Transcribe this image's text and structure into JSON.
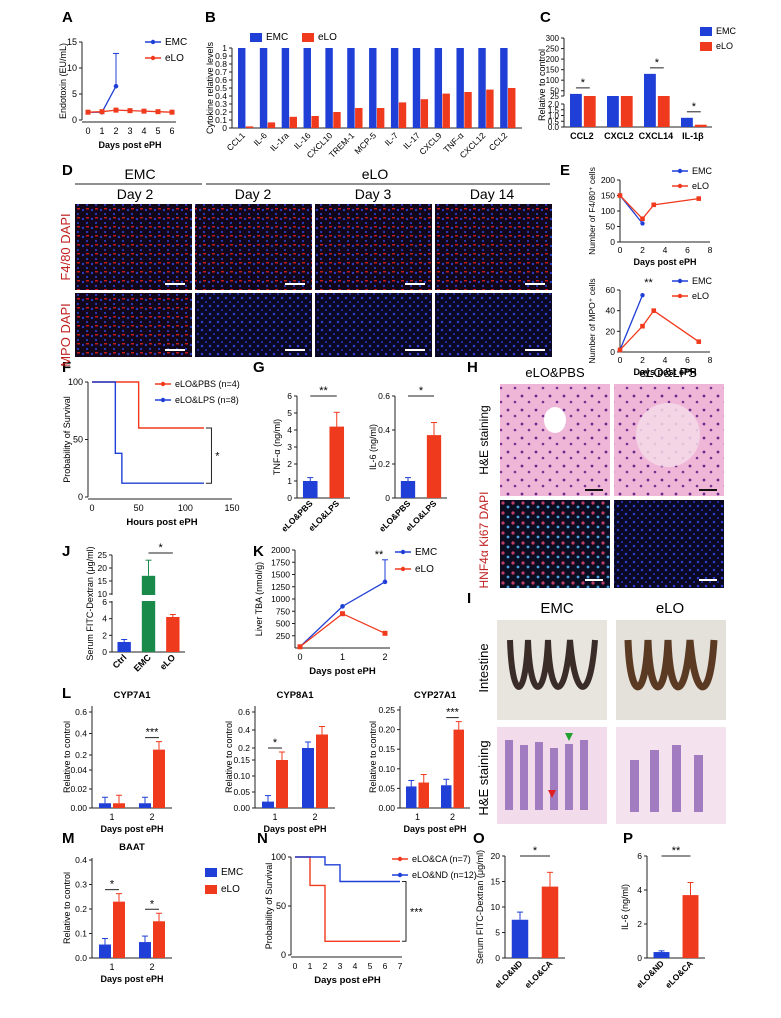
{
  "colors": {
    "emc": "#1f3fd6",
    "elo": "#f03a1e",
    "green": "#1a8a4a",
    "ctrl": "#1f3fd6"
  },
  "panels": {
    "A": "A",
    "B": "B",
    "C": "C",
    "D": "D",
    "E": "E",
    "F": "F",
    "G": "G",
    "H": "H",
    "I": "I",
    "J": "J",
    "K": "K",
    "L": "L",
    "M": "M",
    "N": "N",
    "O": "O",
    "P": "P"
  },
  "legend": {
    "emc": "EMC",
    "elo": "eLO"
  },
  "chart_data": [
    {
      "id": "A",
      "type": "line",
      "ylabel": "Endotoxin (EU/mL)",
      "xlabel": "Days post ePH",
      "x": [
        0,
        1,
        2,
        3,
        4,
        5,
        6
      ],
      "xlim": [
        0,
        6
      ],
      "ylim": [
        0,
        15
      ],
      "yticks": [
        "0",
        "5",
        "10",
        "15"
      ],
      "series": [
        {
          "name": "EMC",
          "values": [
            1.5,
            1.5,
            6.5,
            null,
            null,
            null,
            null
          ],
          "err": [
            0,
            0,
            6.3,
            0,
            0,
            0,
            0
          ]
        },
        {
          "name": "eLO",
          "values": [
            1.5,
            1.6,
            1.9,
            1.8,
            1.7,
            1.6,
            1.5
          ]
        }
      ]
    },
    {
      "id": "B",
      "type": "bar",
      "ylabel": "Cytokine relative levels",
      "categories": [
        "CCL1",
        "IL-6",
        "IL-1ra",
        "IL-16",
        "CXCL10",
        "TREM-1",
        "MCP-5",
        "IL-7",
        "IL-17",
        "CXCL9",
        "TNF-α",
        "CXCL12",
        "CCL2"
      ],
      "ylim": [
        0,
        1.0
      ],
      "yticks": [
        "0",
        "0.1",
        "0.2",
        "0.3",
        "0.4",
        "0.5",
        "0.6",
        "0.7",
        "0.8",
        "0.9",
        "1"
      ],
      "series": [
        {
          "name": "EMC",
          "values": [
            1,
            1,
            1,
            1,
            1,
            1,
            1,
            1,
            1,
            1,
            1,
            1,
            1
          ]
        },
        {
          "name": "eLO",
          "values": [
            0.02,
            0.07,
            0.14,
            0.15,
            0.2,
            0.25,
            0.25,
            0.32,
            0.36,
            0.43,
            0.45,
            0.48,
            0.5
          ]
        }
      ]
    },
    {
      "id": "C",
      "type": "bar",
      "ylabel": "Relative to control",
      "categories": [
        "CCL2",
        "CXCL2",
        "CXCL14",
        "IL-1β"
      ],
      "yticks_top": [
        "0",
        "25",
        "50",
        "100",
        "150",
        "200",
        "250",
        "300"
      ],
      "yticks_bottom": [
        "0.0",
        "0.5",
        "1.0",
        "1.5",
        "2.0"
      ],
      "series": [
        {
          "name": "EMC",
          "values": [
            35,
            22,
            130,
            0.8
          ]
        },
        {
          "name": "eLO",
          "values": [
            5,
            4,
            10,
            0.2
          ]
        }
      ],
      "sig": [
        "*",
        "",
        "*",
        "*"
      ]
    },
    {
      "id": "E1",
      "type": "line",
      "ylabel": "Number of F4/80⁺ cells",
      "xlabel": "Days post ePH",
      "x": [
        0,
        2,
        3,
        7
      ],
      "xticks": [
        "0",
        "2",
        "4",
        "6",
        "8"
      ],
      "ylim": [
        0,
        200
      ],
      "yticks": [
        "0",
        "50",
        "100",
        "150",
        "200"
      ],
      "series": [
        {
          "name": "EMC",
          "x": [
            0,
            2
          ],
          "values": [
            150,
            60
          ]
        },
        {
          "name": "eLO",
          "x": [
            0,
            2,
            3,
            7
          ],
          "values": [
            150,
            75,
            120,
            140
          ]
        }
      ]
    },
    {
      "id": "E2",
      "type": "line",
      "ylabel": "Number of MPO⁺ cells",
      "xlabel": "Days post ePH",
      "x": [
        0,
        2,
        3,
        7
      ],
      "xticks": [
        "0",
        "2",
        "4",
        "6",
        "8"
      ],
      "ylim": [
        0,
        60
      ],
      "yticks": [
        "0",
        "20",
        "40",
        "60"
      ],
      "series": [
        {
          "name": "EMC",
          "x": [
            0,
            2
          ],
          "values": [
            2,
            55
          ]
        },
        {
          "name": "eLO",
          "x": [
            0,
            2,
            3,
            7
          ],
          "values": [
            2,
            25,
            40,
            10
          ]
        }
      ],
      "sig": "**"
    },
    {
      "id": "F",
      "type": "line",
      "ylabel": "Probability of Survival",
      "xlabel": "Hours post ePH",
      "xticks": [
        "0",
        "50",
        "100",
        "150"
      ],
      "yticks": [
        "0",
        "50",
        "100"
      ],
      "series": [
        {
          "name": "eLO&PBS (n=4)",
          "values": [
            100,
            100,
            60,
            60
          ]
        },
        {
          "name": "eLO&LPS (n=8)",
          "values": [
            100,
            38,
            12,
            12
          ]
        }
      ],
      "sig": "*"
    },
    {
      "id": "G1",
      "type": "bar",
      "ylabel": "TNF-α (ng/ml)",
      "categories": [
        "eLO&PBS",
        "eLO&LPS"
      ],
      "values": [
        1.0,
        4.2
      ],
      "ylim": [
        0,
        6
      ],
      "yticks": [
        "0",
        "1",
        "2",
        "3",
        "4",
        "5",
        "6"
      ],
      "sig": "**"
    },
    {
      "id": "G2",
      "type": "bar",
      "ylabel": "IL-6 (ng/ml)",
      "categories": [
        "eLO&PBS",
        "eLO&LPS"
      ],
      "values": [
        0.1,
        0.37
      ],
      "ylim": [
        0,
        0.6
      ],
      "yticks": [
        "0",
        "0.2",
        "0.4",
        "0.6"
      ],
      "sig": "*"
    },
    {
      "id": "J",
      "type": "bar",
      "ylabel": "Serum FITC-Dextran (μg/ml)",
      "categories": [
        "Ctrl",
        "EMC",
        "eLO"
      ],
      "values": [
        1.2,
        17,
        4.2
      ],
      "yticks": [
        "0",
        "2",
        "4",
        "6",
        "10",
        "15",
        "20",
        "25"
      ],
      "sig": "*"
    },
    {
      "id": "K",
      "type": "line",
      "ylabel": "Liver TBA (nmol/g)",
      "xlabel": "Days post ePH",
      "xticks": [
        "0",
        "1",
        "2"
      ],
      "yticks": [
        "250",
        "500",
        "750",
        "1000",
        "1250",
        "1500",
        "1750",
        "2000"
      ],
      "series": [
        {
          "name": "EMC",
          "values": [
            25,
            850,
            1350
          ]
        },
        {
          "name": "eLO",
          "values": [
            25,
            700,
            300
          ]
        }
      ],
      "sig": "**"
    },
    {
      "id": "L1",
      "type": "bar",
      "title": "CYP7A1",
      "ylabel": "Relative to control",
      "xlabel": "Days post ePH",
      "categories": [
        "1",
        "2"
      ],
      "yticks": [
        "0.00",
        "0.02",
        "0.04",
        "0.2",
        "0.4",
        "0.6"
      ],
      "series": [
        {
          "name": "EMC",
          "values": [
            0.005,
            0.005
          ]
        },
        {
          "name": "eLO",
          "values": [
            0.005,
            0.25
          ]
        }
      ],
      "sig": "***"
    },
    {
      "id": "L2",
      "type": "bar",
      "title": "CYP8A1",
      "ylabel": "Relative to control",
      "xlabel": "Days post ePH",
      "categories": [
        "1",
        "2"
      ],
      "yticks": [
        "0.00",
        "0.05",
        "0.10",
        "0.15",
        "0.2",
        "0.4",
        "0.6"
      ],
      "series": [
        {
          "name": "EMC",
          "values": [
            0.02,
            0.2
          ]
        },
        {
          "name": "eLO",
          "values": [
            0.15,
            0.35
          ]
        }
      ],
      "sig": "*"
    },
    {
      "id": "L3",
      "type": "bar",
      "title": "CYP27A1",
      "ylabel": "Relative to control",
      "xlabel": "Days post ePH",
      "categories": [
        "1",
        "2"
      ],
      "yticks": [
        "0.00",
        "0.05",
        "0.10",
        "0.15",
        "0.20",
        "0.25"
      ],
      "series": [
        {
          "name": "EMC",
          "values": [
            0.055,
            0.058
          ]
        },
        {
          "name": "eLO",
          "values": [
            0.065,
            0.2
          ]
        }
      ],
      "sig": "***"
    },
    {
      "id": "M",
      "type": "bar",
      "title": "BAAT",
      "ylabel": "Relative to control",
      "xlabel": "Days post ePH",
      "categories": [
        "1",
        "2"
      ],
      "ylim": [
        0,
        0.4
      ],
      "yticks": [
        "0.0",
        "0.1",
        "0.2",
        "0.3",
        "0.4"
      ],
      "series": [
        {
          "name": "EMC",
          "values": [
            0.055,
            0.065
          ]
        },
        {
          "name": "eLO",
          "values": [
            0.23,
            0.15
          ]
        }
      ],
      "sig": [
        "*",
        "*"
      ]
    },
    {
      "id": "N",
      "type": "line",
      "ylabel": "Probability of Survival",
      "xlabel": "Days post ePH",
      "xticks": [
        "0",
        "1",
        "2",
        "3",
        "4",
        "5",
        "6",
        "7"
      ],
      "yticks": [
        "0",
        "50",
        "100"
      ],
      "series": [
        {
          "name": "eLO&CA (n=7)",
          "values": [
            100,
            71,
            14,
            14,
            14,
            14,
            14,
            14
          ]
        },
        {
          "name": "eLO&ND (n=12)",
          "values": [
            100,
            100,
            92,
            75,
            75,
            75,
            75,
            75
          ]
        }
      ],
      "sig": "***"
    },
    {
      "id": "O",
      "type": "bar",
      "ylabel": "Serum FITC-Dextran (μg/ml)",
      "categories": [
        "eLO&ND",
        "eLO&CA"
      ],
      "values": [
        7.5,
        14
      ],
      "ylim": [
        0,
        20
      ],
      "yticks": [
        "0",
        "5",
        "10",
        "15",
        "20"
      ],
      "sig": "*"
    },
    {
      "id": "P",
      "type": "bar",
      "ylabel": "IL-6 (ng/ml)",
      "categories": [
        "eLO&ND",
        "eLO&CA"
      ],
      "values": [
        0.35,
        3.7
      ],
      "ylim": [
        0,
        6
      ],
      "yticks": [
        "0",
        "2",
        "4",
        "6"
      ],
      "sig": "**"
    }
  ],
  "image_labels": {
    "D_groups": [
      "EMC",
      "eLO"
    ],
    "D_days": [
      "Day 2",
      "Day 2",
      "Day 3",
      "Day 14"
    ],
    "D_row1": "F4/80 DAPI",
    "D_row2": "MPO DAPI",
    "H_cols": [
      "eLO&PBS",
      "eLO&LPS"
    ],
    "H_row1": "H&E staining",
    "H_row2": "HNF4α Ki67 DAPI",
    "I_cols": [
      "EMC",
      "eLO"
    ],
    "I_row1": "Intestine",
    "I_row2": "H&E staining"
  }
}
